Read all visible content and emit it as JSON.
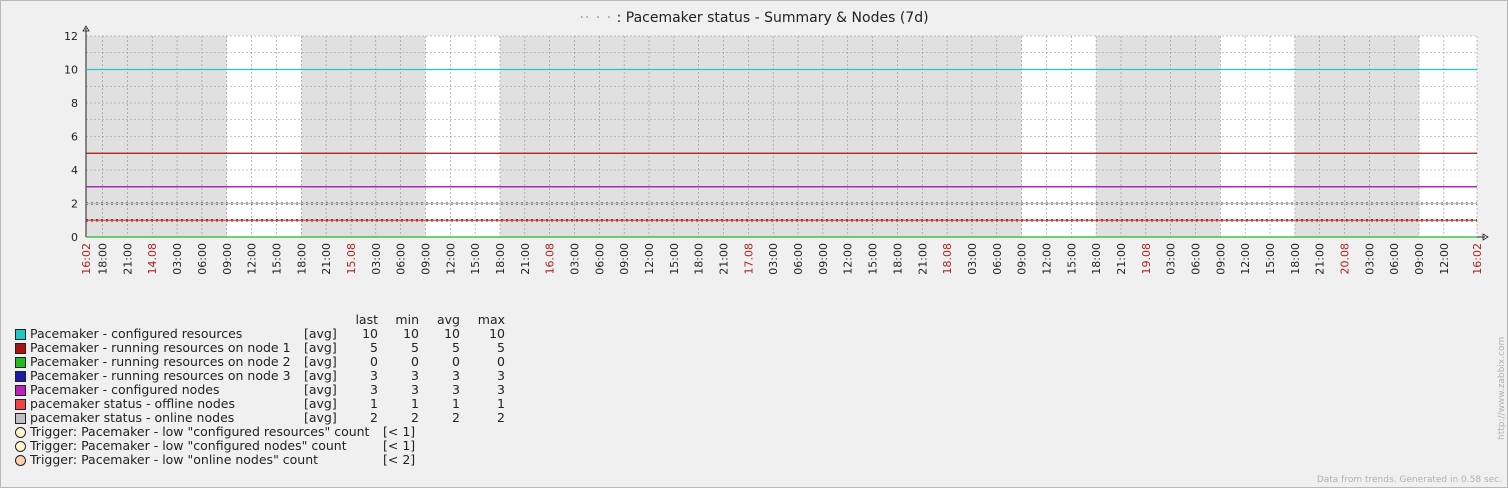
{
  "title": {
    "host": "·· · ·",
    "text": ": Pacemaker status - Summary & Nodes (7d)"
  },
  "chart_data": {
    "type": "line",
    "title": ": Pacemaker status - Summary & Nodes (7d)",
    "ylim": [
      0,
      12
    ],
    "y_ticks": [
      "0",
      "2",
      "4",
      "6",
      "8",
      "10",
      "12"
    ],
    "x_tick_labels": [
      "16:02",
      "18:00",
      "21:00",
      "14.08",
      "03:00",
      "06:00",
      "09:00",
      "12:00",
      "15:00",
      "18:00",
      "21:00",
      "15.08",
      "03:00",
      "06:00",
      "09:00",
      "12:00",
      "15:00",
      "18:00",
      "21:00",
      "16.08",
      "03:00",
      "06:00",
      "09:00",
      "12:00",
      "15:00",
      "18:00",
      "21:00",
      "17.08",
      "03:00",
      "06:00",
      "09:00",
      "12:00",
      "15:00",
      "18:00",
      "21:00",
      "18.08",
      "03:00",
      "06:00",
      "09:00",
      "12:00",
      "15:00",
      "18:00",
      "21:00",
      "19.08",
      "03:00",
      "06:00",
      "09:00",
      "12:00",
      "15:00",
      "18:00",
      "21:00",
      "20.08",
      "03:00",
      "06:00",
      "09:00",
      "12:00",
      "16:02"
    ],
    "x_tick_hours": [
      0,
      2,
      5,
      8,
      11,
      14,
      17,
      20,
      23,
      26,
      29,
      32,
      35,
      38,
      41,
      44,
      47,
      50,
      53,
      56,
      59,
      62,
      65,
      68,
      71,
      74,
      77,
      80,
      83,
      86,
      89,
      92,
      95,
      98,
      101,
      104,
      107,
      110,
      113,
      116,
      119,
      122,
      125,
      128,
      131,
      134,
      137,
      140,
      143,
      146,
      149,
      152,
      155,
      158,
      161,
      164,
      168
    ],
    "x_tick_highlight": [
      "16:02",
      "14.08",
      "15.08",
      "16.08",
      "17.08",
      "18.08",
      "19.08",
      "20.08",
      "16:02"
    ],
    "night_bands_hours": [
      [
        0,
        17
      ],
      [
        26,
        41
      ],
      [
        50,
        113
      ],
      [
        122,
        137
      ],
      [
        146,
        161
      ]
    ],
    "x_range_hours": [
      0,
      168
    ],
    "grid": true,
    "series": [
      {
        "name": "Pacemaker - configured resources",
        "color": "#1fc7c7",
        "value": 10,
        "style": "solid"
      },
      {
        "name": "Pacemaker - running resources on node 1",
        "color": "#aa1111",
        "value": 5,
        "style": "solid"
      },
      {
        "name": "Pacemaker - running resources on node 2",
        "color": "#22bb22",
        "value": 0,
        "style": "solid"
      },
      {
        "name": "Pacemaker - running resources on node 3",
        "color": "#1a1aaa",
        "value": 3,
        "style": "solid"
      },
      {
        "name": "Pacemaker - configured nodes",
        "color": "#bb22bb",
        "value": 3,
        "style": "solid"
      },
      {
        "name": "pacemaker status - offline nodes",
        "color": "#ee4444",
        "value": 1,
        "style": "solid"
      },
      {
        "name": "pacemaker status - online nodes",
        "color": "#c0c0c0",
        "value": 2,
        "style": "solid"
      }
    ],
    "triggers": [
      {
        "value": 1,
        "color": "#000000"
      },
      {
        "value": 1,
        "color": "#000000"
      },
      {
        "value": 2,
        "color": "#000000"
      }
    ]
  },
  "legend": {
    "headers": {
      "last": "last",
      "min": "min",
      "avg": "avg",
      "max": "max"
    },
    "rows": [
      {
        "name": "Pacemaker - configured resources",
        "func": "[avg]",
        "last": "10",
        "min": "10",
        "avg": "10",
        "max": "10",
        "color": "#1fc7c7"
      },
      {
        "name": "Pacemaker - running resources on node 1",
        "func": "[avg]",
        "last": "5",
        "min": "5",
        "avg": "5",
        "max": "5",
        "color": "#aa1111"
      },
      {
        "name": "Pacemaker - running resources on node 2",
        "func": "[avg]",
        "last": "0",
        "min": "0",
        "avg": "0",
        "max": "0",
        "color": "#22bb22"
      },
      {
        "name": "Pacemaker - running resources on node 3",
        "func": "[avg]",
        "last": "3",
        "min": "3",
        "avg": "3",
        "max": "3",
        "color": "#1a1aaa"
      },
      {
        "name": "Pacemaker - configured nodes",
        "func": "[avg]",
        "last": "3",
        "min": "3",
        "avg": "3",
        "max": "3",
        "color": "#bb22bb"
      },
      {
        "name": "pacemaker status - offline nodes",
        "func": "[avg]",
        "last": "1",
        "min": "1",
        "avg": "1",
        "max": "1",
        "color": "#ee4444"
      },
      {
        "name": "pacemaker status - online nodes",
        "func": "[avg]",
        "last": "2",
        "min": "2",
        "avg": "2",
        "max": "2",
        "color": "#c0c0c0"
      }
    ],
    "triggers": [
      {
        "name": "Trigger: Pacemaker - low \"configured resources\" count",
        "value": "[< 1]",
        "color": "#fff8d0"
      },
      {
        "name": "Trigger: Pacemaker - low \"configured nodes\" count",
        "value": "[< 1]",
        "color": "#fff8d0"
      },
      {
        "name": "Trigger: Pacemaker - low \"online nodes\" count",
        "value": "[< 2]",
        "color": "#ffd0b0"
      }
    ]
  },
  "footer": {
    "generated": "Data from trends. Generated in 0.58 sec.",
    "watermark": "http://www.zabbix.com"
  }
}
